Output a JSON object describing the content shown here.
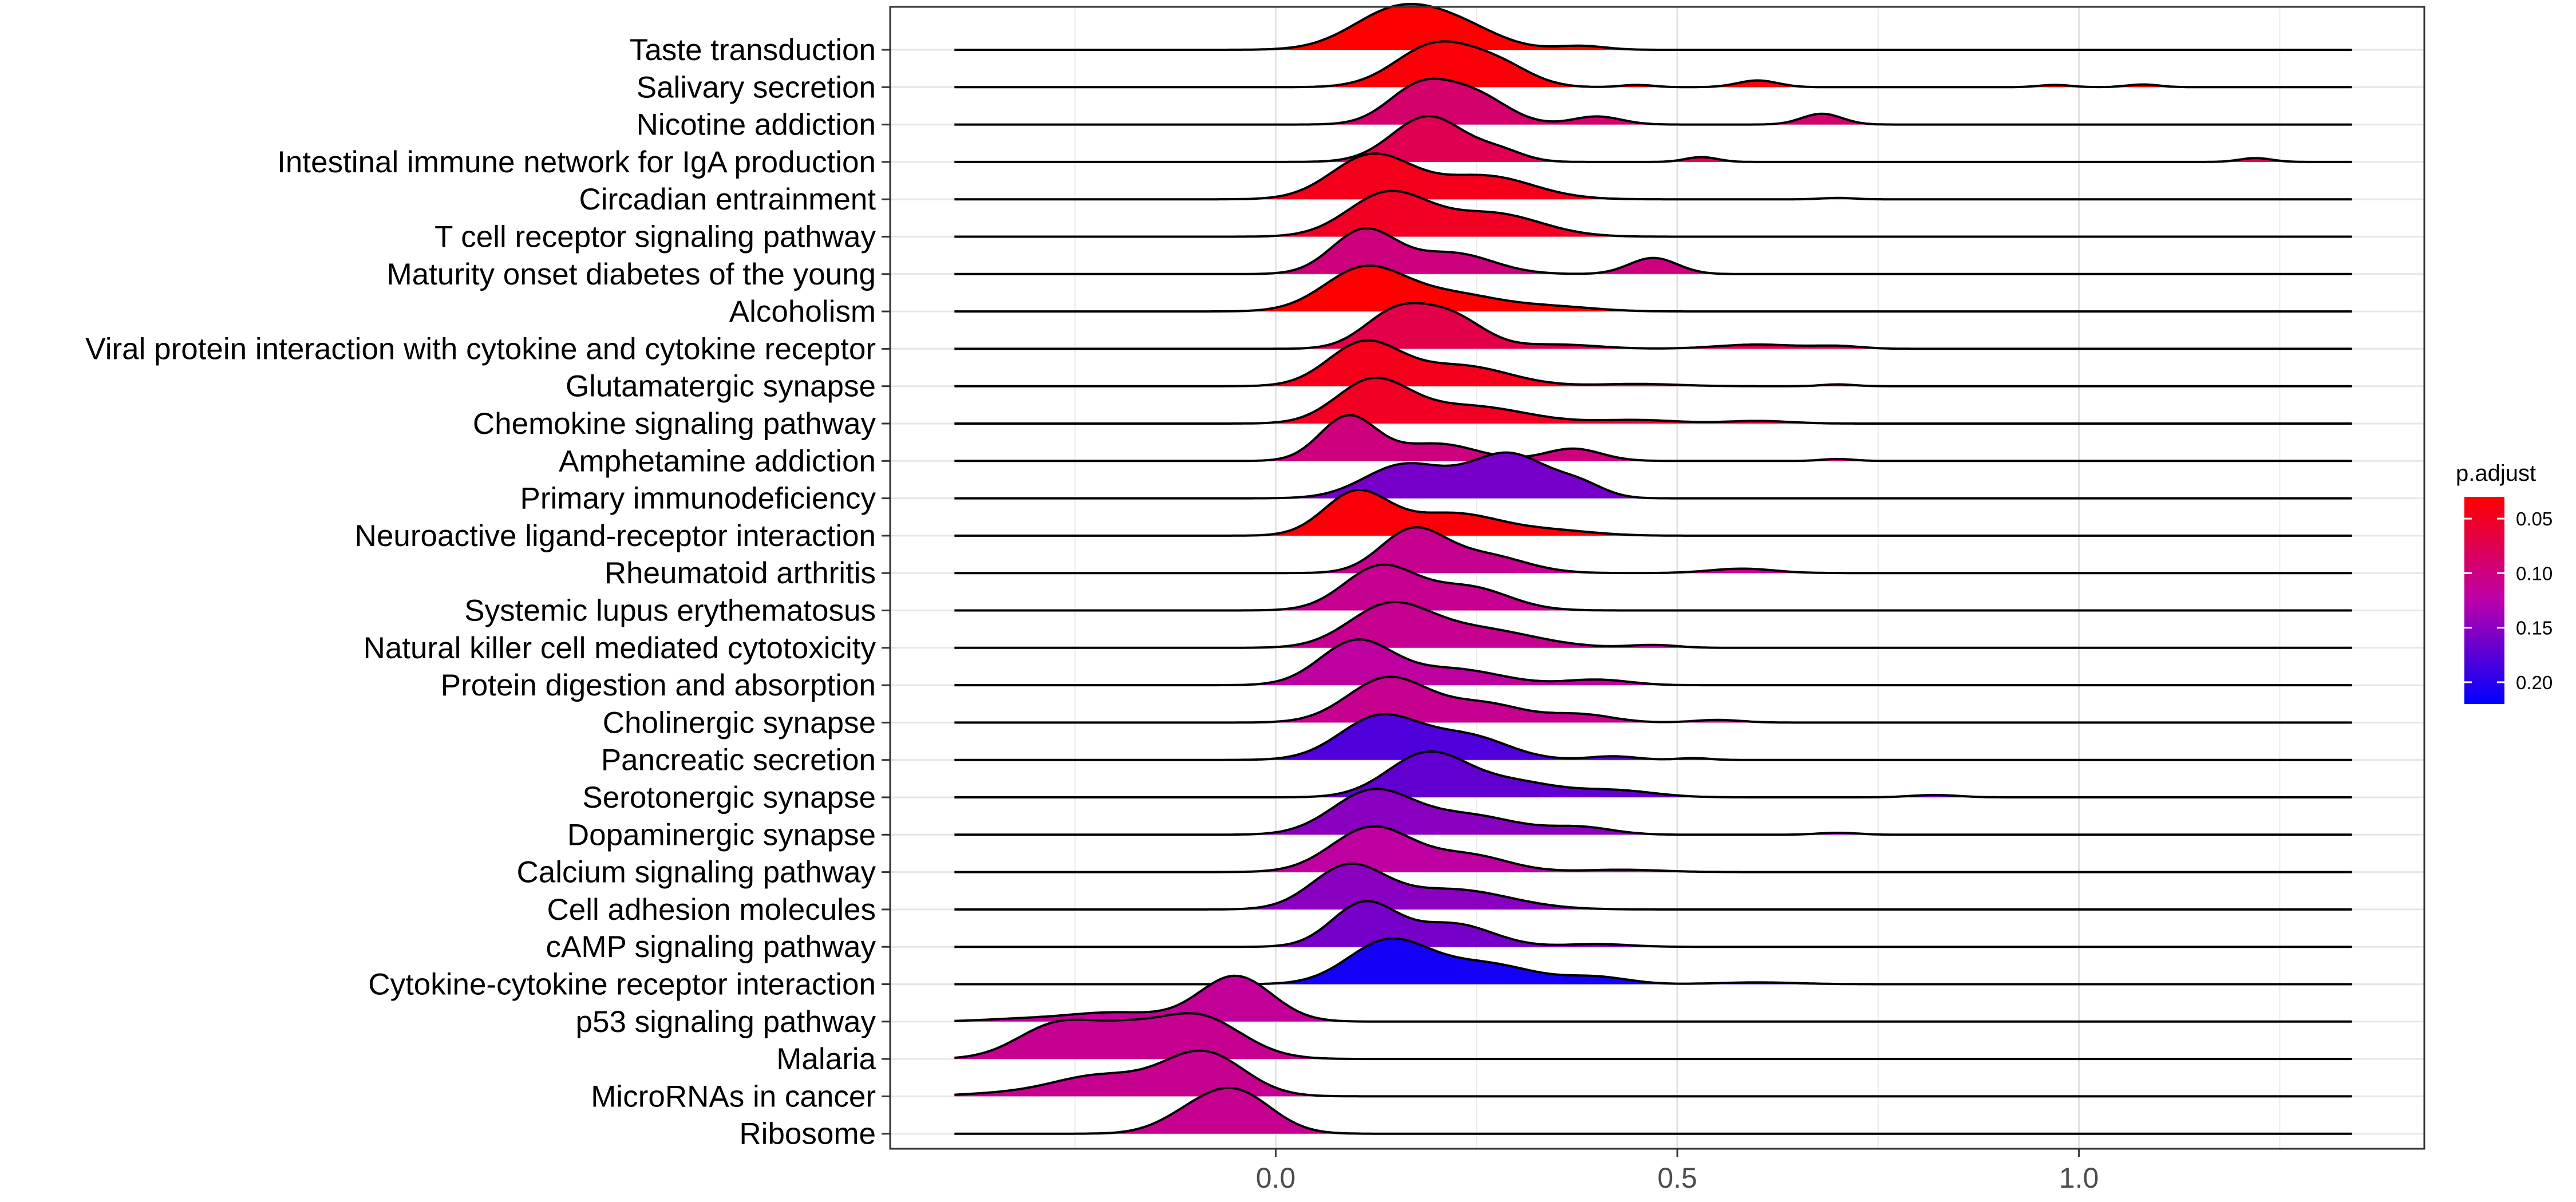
{
  "chart_data": {
    "type": "ridgeline",
    "xlim": [
      -0.48,
      1.43
    ],
    "xticks": [
      {
        "value": 0.0,
        "label": "0.0"
      },
      {
        "value": 0.5,
        "label": "0.5"
      },
      {
        "value": 1.0,
        "label": "1.0"
      }
    ],
    "grid": true,
    "legend": {
      "title": "p.adjust",
      "placement": "right",
      "range": [
        0.03,
        0.22
      ],
      "ticks": [
        {
          "value": 0.05,
          "label": "0.05"
        },
        {
          "value": 0.1,
          "label": "0.10"
        },
        {
          "value": 0.15,
          "label": "0.15"
        },
        {
          "value": 0.2,
          "label": "0.20"
        }
      ],
      "low_color": "#ff0000",
      "high_color": "#0000ff"
    },
    "series": [
      {
        "name": "Taste transduction",
        "p_adjust": 0.03,
        "peaks": [
          [
            0.15,
            0.055,
            1.0
          ],
          [
            0.23,
            0.05,
            0.5
          ],
          [
            0.38,
            0.03,
            0.1
          ]
        ]
      },
      {
        "name": "Salivary secretion",
        "p_adjust": 0.035,
        "peaks": [
          [
            0.2,
            0.05,
            0.95
          ],
          [
            0.28,
            0.04,
            0.4
          ],
          [
            0.45,
            0.02,
            0.05
          ],
          [
            0.6,
            0.025,
            0.15
          ],
          [
            0.97,
            0.02,
            0.05
          ],
          [
            1.08,
            0.02,
            0.06
          ]
        ]
      },
      {
        "name": "Nicotine addiction",
        "p_adjust": 0.09,
        "peaks": [
          [
            0.18,
            0.04,
            0.7
          ],
          [
            0.25,
            0.04,
            0.5
          ],
          [
            0.4,
            0.03,
            0.15
          ],
          [
            0.68,
            0.025,
            0.2
          ]
        ]
      },
      {
        "name": "Intestinal immune network for IgA production",
        "p_adjust": 0.075,
        "peaks": [
          [
            0.19,
            0.045,
            0.95
          ],
          [
            0.28,
            0.03,
            0.2
          ],
          [
            0.53,
            0.02,
            0.1
          ],
          [
            1.22,
            0.02,
            0.08
          ]
        ]
      },
      {
        "name": "Circadian entrainment",
        "p_adjust": 0.045,
        "peaks": [
          [
            0.12,
            0.05,
            0.95
          ],
          [
            0.26,
            0.06,
            0.5
          ],
          [
            0.7,
            0.02,
            0.03
          ]
        ]
      },
      {
        "name": "T cell receptor signaling pathway",
        "p_adjust": 0.05,
        "peaks": [
          [
            0.14,
            0.05,
            0.85
          ],
          [
            0.27,
            0.06,
            0.45
          ]
        ]
      },
      {
        "name": "Maturity onset diabetes of the young",
        "p_adjust": 0.1,
        "peaks": [
          [
            0.11,
            0.04,
            0.95
          ],
          [
            0.22,
            0.05,
            0.45
          ],
          [
            0.47,
            0.03,
            0.35
          ]
        ]
      },
      {
        "name": "Alcoholism",
        "p_adjust": 0.03,
        "peaks": [
          [
            0.11,
            0.05,
            1.0
          ],
          [
            0.22,
            0.06,
            0.4
          ],
          [
            0.35,
            0.05,
            0.1
          ]
        ]
      },
      {
        "name": "Viral protein interaction with cytokine and cytokine receptor",
        "p_adjust": 0.07,
        "peaks": [
          [
            0.15,
            0.04,
            0.85
          ],
          [
            0.22,
            0.04,
            0.7
          ],
          [
            0.35,
            0.05,
            0.1
          ],
          [
            0.6,
            0.05,
            0.1
          ],
          [
            0.7,
            0.03,
            0.06
          ]
        ]
      },
      {
        "name": "Glutamatergic synapse",
        "p_adjust": 0.045,
        "peaks": [
          [
            0.11,
            0.045,
            0.95
          ],
          [
            0.23,
            0.06,
            0.45
          ],
          [
            0.45,
            0.05,
            0.05
          ],
          [
            0.7,
            0.02,
            0.04
          ]
        ]
      },
      {
        "name": "Chemokine signaling pathway",
        "p_adjust": 0.05,
        "peaks": [
          [
            0.12,
            0.045,
            0.95
          ],
          [
            0.24,
            0.07,
            0.4
          ],
          [
            0.45,
            0.05,
            0.08
          ],
          [
            0.6,
            0.04,
            0.06
          ]
        ]
      },
      {
        "name": "Amphetamine addiction",
        "p_adjust": 0.1,
        "peaks": [
          [
            0.09,
            0.035,
            0.9
          ],
          [
            0.2,
            0.05,
            0.35
          ],
          [
            0.37,
            0.035,
            0.25
          ],
          [
            0.7,
            0.02,
            0.04
          ]
        ]
      },
      {
        "name": "Primary immunodeficiency",
        "p_adjust": 0.16,
        "peaks": [
          [
            0.16,
            0.05,
            0.6
          ],
          [
            0.29,
            0.05,
            0.8
          ],
          [
            0.38,
            0.03,
            0.2
          ]
        ]
      },
      {
        "name": "Neuroactive ligand-receptor interaction",
        "p_adjust": 0.035,
        "peaks": [
          [
            0.1,
            0.04,
            0.95
          ],
          [
            0.22,
            0.06,
            0.5
          ],
          [
            0.35,
            0.05,
            0.1
          ]
        ]
      },
      {
        "name": "Rheumatoid arthritis",
        "p_adjust": 0.11,
        "peaks": [
          [
            0.17,
            0.04,
            0.95
          ],
          [
            0.26,
            0.05,
            0.4
          ],
          [
            0.58,
            0.04,
            0.1
          ]
        ]
      },
      {
        "name": "Systemic lupus erythematosus",
        "p_adjust": 0.11,
        "peaks": [
          [
            0.13,
            0.045,
            0.95
          ],
          [
            0.24,
            0.05,
            0.5
          ]
        ]
      },
      {
        "name": "Natural killer cell mediated cytotoxicity",
        "p_adjust": 0.11,
        "peaks": [
          [
            0.14,
            0.05,
            0.85
          ],
          [
            0.25,
            0.07,
            0.4
          ],
          [
            0.47,
            0.03,
            0.06
          ]
        ]
      },
      {
        "name": "Protein digestion and absorption",
        "p_adjust": 0.12,
        "peaks": [
          [
            0.1,
            0.045,
            0.95
          ],
          [
            0.22,
            0.06,
            0.35
          ],
          [
            0.4,
            0.04,
            0.12
          ]
        ]
      },
      {
        "name": "Cholinergic synapse",
        "p_adjust": 0.11,
        "peaks": [
          [
            0.14,
            0.05,
            0.85
          ],
          [
            0.26,
            0.05,
            0.35
          ],
          [
            0.38,
            0.04,
            0.15
          ],
          [
            0.55,
            0.03,
            0.05
          ]
        ]
      },
      {
        "name": "Pancreatic secretion",
        "p_adjust": 0.18,
        "peaks": [
          [
            0.13,
            0.05,
            0.95
          ],
          [
            0.24,
            0.05,
            0.5
          ],
          [
            0.42,
            0.03,
            0.08
          ],
          [
            0.52,
            0.02,
            0.04
          ]
        ]
      },
      {
        "name": "Serotonergic synapse",
        "p_adjust": 0.17,
        "peaks": [
          [
            0.19,
            0.05,
            0.95
          ],
          [
            0.3,
            0.05,
            0.3
          ],
          [
            0.42,
            0.05,
            0.15
          ],
          [
            0.82,
            0.03,
            0.05
          ]
        ]
      },
      {
        "name": "Dopaminergic synapse",
        "p_adjust": 0.15,
        "peaks": [
          [
            0.12,
            0.05,
            0.9
          ],
          [
            0.24,
            0.06,
            0.4
          ],
          [
            0.38,
            0.04,
            0.15
          ],
          [
            0.7,
            0.025,
            0.04
          ]
        ]
      },
      {
        "name": "Calcium signaling pathway",
        "p_adjust": 0.12,
        "peaks": [
          [
            0.12,
            0.05,
            0.95
          ],
          [
            0.24,
            0.05,
            0.35
          ],
          [
            0.43,
            0.05,
            0.05
          ]
        ]
      },
      {
        "name": "Cell adhesion molecules",
        "p_adjust": 0.15,
        "peaks": [
          [
            0.09,
            0.045,
            0.95
          ],
          [
            0.22,
            0.07,
            0.45
          ]
        ]
      },
      {
        "name": "cAMP signaling pathway",
        "p_adjust": 0.16,
        "peaks": [
          [
            0.11,
            0.04,
            0.95
          ],
          [
            0.22,
            0.05,
            0.5
          ],
          [
            0.4,
            0.04,
            0.06
          ]
        ]
      },
      {
        "name": "Cytokine-cytokine receptor interaction",
        "p_adjust": 0.21,
        "peaks": [
          [
            0.14,
            0.05,
            0.95
          ],
          [
            0.26,
            0.06,
            0.45
          ],
          [
            0.4,
            0.04,
            0.15
          ],
          [
            0.6,
            0.05,
            0.04
          ]
        ]
      },
      {
        "name": "p53 signaling pathway",
        "p_adjust": 0.115,
        "peaks": [
          [
            -0.05,
            0.045,
            1.0
          ],
          [
            -0.2,
            0.06,
            0.2
          ],
          [
            -0.32,
            0.05,
            0.05
          ]
        ]
      },
      {
        "name": "Malaria",
        "p_adjust": 0.11,
        "peaks": [
          [
            -0.27,
            0.05,
            0.6
          ],
          [
            -0.1,
            0.055,
            0.75
          ],
          [
            -0.19,
            0.04,
            0.3
          ]
        ]
      },
      {
        "name": "MicroRNAs in cancer",
        "p_adjust": 0.11,
        "peaks": [
          [
            -0.09,
            0.05,
            0.95
          ],
          [
            -0.22,
            0.06,
            0.45
          ],
          [
            -0.35,
            0.05,
            0.05
          ]
        ]
      },
      {
        "name": "Ribosome",
        "p_adjust": 0.11,
        "peaks": [
          [
            -0.05,
            0.045,
            1.0
          ],
          [
            -0.11,
            0.04,
            0.3
          ]
        ]
      }
    ]
  }
}
